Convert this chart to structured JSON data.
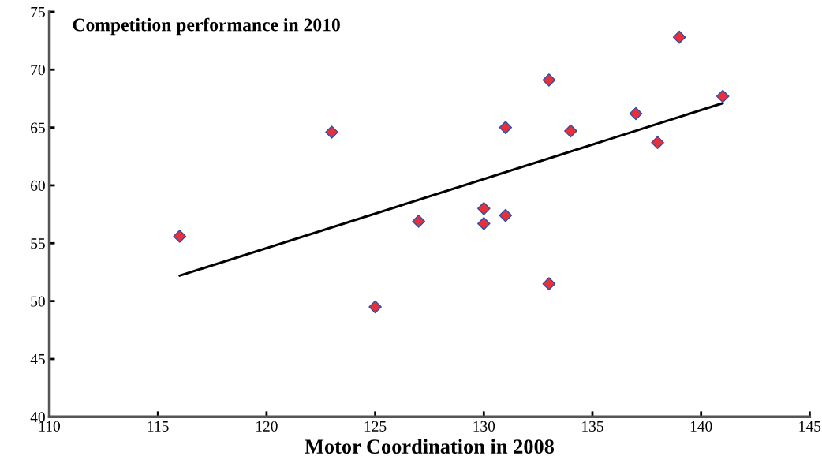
{
  "chart_data": {
    "type": "scatter",
    "xlabel": "Motor Coordination in 2008",
    "ylabel": "Competition performance in 2010",
    "xlim": [
      110,
      145
    ],
    "xticks": [
      110,
      115,
      120,
      125,
      130,
      135,
      140,
      145
    ],
    "ylim": [
      40,
      75
    ],
    "yticks": [
      40,
      45,
      50,
      55,
      60,
      65,
      70,
      75
    ],
    "grid": false,
    "legend": false,
    "series": [
      {
        "marker": "diamond",
        "color": "#e8303a",
        "x": [
          116,
          123,
          125,
          127,
          130,
          130,
          131,
          131,
          133,
          133,
          134,
          137,
          138,
          139,
          141
        ],
        "values": [
          55.6,
          64.6,
          49.5,
          56.9,
          58.0,
          56.7,
          65.0,
          57.4,
          69.1,
          51.5,
          64.7,
          66.2,
          63.7,
          72.8,
          67.7
        ]
      },
      {
        "type": "line",
        "marker": "none",
        "color": "#000000",
        "x": [
          116,
          141
        ],
        "values": [
          52.2,
          67.1
        ]
      }
    ]
  }
}
